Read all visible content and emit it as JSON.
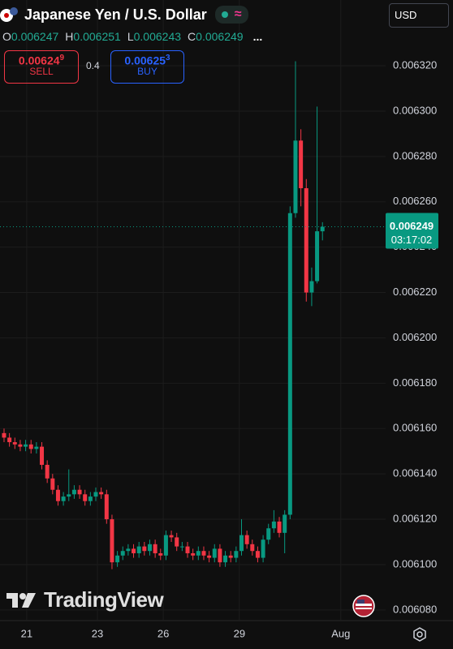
{
  "header": {
    "title": "Japanese Yen / U.S. Dollar",
    "currency": "USD",
    "ohlc": [
      {
        "key": "O",
        "value": "0.006247"
      },
      {
        "key": "H",
        "value": "0.006251"
      },
      {
        "key": "L",
        "value": "0.006243"
      },
      {
        "key": "C",
        "value": "0.006249"
      }
    ],
    "more": "...",
    "sell": {
      "price": "0.00624",
      "pip": "9",
      "label": "SELL"
    },
    "spread": "0.4",
    "buy": {
      "price": "0.00625",
      "pip": "3",
      "label": "BUY"
    }
  },
  "branding": "TradingView",
  "chart_data": {
    "type": "candlestick",
    "up_color": "#089981",
    "down_color": "#f23645",
    "grid": true,
    "x": [
      0,
      1,
      2,
      3,
      4,
      5,
      6,
      7,
      8,
      9,
      10,
      11,
      12,
      13,
      14,
      15,
      16,
      17,
      18,
      19,
      20,
      21,
      22,
      23,
      24,
      25,
      26,
      27,
      28,
      29,
      30,
      31,
      32,
      33,
      34,
      35,
      36,
      37,
      38,
      39,
      40,
      41,
      42,
      43,
      44,
      45,
      46,
      47,
      48,
      49,
      50,
      51,
      52,
      53,
      54,
      55,
      56,
      57,
      58,
      59
    ],
    "open": [
      0.006158,
      0.006156,
      0.006154,
      0.006153,
      0.006152,
      0.006153,
      0.006151,
      0.006152,
      0.006144,
      0.006138,
      0.006133,
      0.006128,
      0.00613,
      0.006131,
      0.006133,
      0.006131,
      0.006128,
      0.00613,
      0.006132,
      0.006131,
      0.00612,
      0.006101,
      0.006104,
      0.006106,
      0.006107,
      0.006105,
      0.006108,
      0.006106,
      0.006109,
      0.006105,
      0.006104,
      0.006113,
      0.006112,
      0.006108,
      0.006108,
      0.006105,
      0.006104,
      0.006106,
      0.006104,
      0.006103,
      0.006107,
      0.006101,
      0.006104,
      0.006103,
      0.006106,
      0.006113,
      0.006109,
      0.006106,
      0.006103,
      0.006111,
      0.006116,
      0.006119,
      0.006114,
      0.006122,
      0.006255,
      0.006287,
      0.006266,
      0.00622,
      0.006225,
      0.006247
    ],
    "high": [
      0.00616,
      0.006158,
      0.006156,
      0.006155,
      0.006155,
      0.006155,
      0.006154,
      0.006154,
      0.006146,
      0.00614,
      0.006135,
      0.006132,
      0.006142,
      0.006135,
      0.006135,
      0.006133,
      0.006132,
      0.006134,
      0.006134,
      0.006133,
      0.006122,
      0.006106,
      0.006108,
      0.006109,
      0.006109,
      0.00611,
      0.00611,
      0.006111,
      0.006111,
      0.006107,
      0.006115,
      0.006115,
      0.006114,
      0.00611,
      0.00611,
      0.006107,
      0.006108,
      0.006108,
      0.006106,
      0.006109,
      0.006109,
      0.006106,
      0.006106,
      0.006108,
      0.00612,
      0.006115,
      0.006111,
      0.006108,
      0.006113,
      0.006118,
      0.006124,
      0.006121,
      0.006124,
      0.006258,
      0.006322,
      0.006292,
      0.00627,
      0.006231,
      0.006302,
      0.006251
    ],
    "low": [
      0.006154,
      0.006152,
      0.006151,
      0.00615,
      0.00615,
      0.006149,
      0.006149,
      0.006142,
      0.006136,
      0.006131,
      0.006126,
      0.006126,
      0.006128,
      0.006129,
      0.006129,
      0.006126,
      0.006126,
      0.006128,
      0.006129,
      0.006118,
      0.006098,
      0.006099,
      0.006102,
      0.006104,
      0.006103,
      0.006103,
      0.006104,
      0.006104,
      0.006103,
      0.006102,
      0.006102,
      0.00611,
      0.006106,
      0.006106,
      0.006103,
      0.006102,
      0.006102,
      0.006102,
      0.006101,
      0.006101,
      0.006099,
      0.006099,
      0.006101,
      0.006101,
      0.006104,
      0.006107,
      0.006104,
      0.006101,
      0.006101,
      0.006109,
      0.006114,
      0.006112,
      0.006105,
      0.00612,
      0.006253,
      0.006258,
      0.006216,
      0.006214,
      0.006224,
      0.006243
    ],
    "close": [
      0.006156,
      0.006154,
      0.006153,
      0.006152,
      0.006153,
      0.006151,
      0.006152,
      0.006144,
      0.006138,
      0.006133,
      0.006128,
      0.00613,
      0.006131,
      0.006133,
      0.006131,
      0.006128,
      0.00613,
      0.006132,
      0.006131,
      0.00612,
      0.006101,
      0.006104,
      0.006106,
      0.006107,
      0.006105,
      0.006108,
      0.006106,
      0.006109,
      0.006105,
      0.006104,
      0.006113,
      0.006112,
      0.006108,
      0.006108,
      0.006105,
      0.006104,
      0.006106,
      0.006104,
      0.006103,
      0.006107,
      0.006101,
      0.006104,
      0.006103,
      0.006106,
      0.006113,
      0.006109,
      0.006106,
      0.006103,
      0.006111,
      0.006116,
      0.006119,
      0.006114,
      0.006122,
      0.006255,
      0.006287,
      0.006266,
      0.00622,
      0.006225,
      0.006247,
      0.006249
    ],
    "xlim": [
      -0.75,
      70.7
    ],
    "xticks": [
      {
        "value": 4.2,
        "label": "21"
      },
      {
        "value": 17.3,
        "label": "23"
      },
      {
        "value": 29.5,
        "label": "26"
      },
      {
        "value": 43.6,
        "label": "29"
      },
      {
        "value": 62.4,
        "label": "Aug"
      }
    ],
    "ylim": [
      0.0060753,
      0.006349
    ],
    "yticks": [
      {
        "value": 0.00608,
        "label": "0.006080"
      },
      {
        "value": 0.0061,
        "label": "0.006100"
      },
      {
        "value": 0.00612,
        "label": "0.006120"
      },
      {
        "value": 0.00614,
        "label": "0.006140"
      },
      {
        "value": 0.00616,
        "label": "0.006160"
      },
      {
        "value": 0.00618,
        "label": "0.006180"
      },
      {
        "value": 0.0062,
        "label": "0.006200"
      },
      {
        "value": 0.00622,
        "label": "0.006220"
      },
      {
        "value": 0.00624,
        "label": "0.006240"
      },
      {
        "value": 0.00626,
        "label": "0.006260"
      },
      {
        "value": 0.00628,
        "label": "0.006280"
      },
      {
        "value": 0.0063,
        "label": "0.006300"
      },
      {
        "value": 0.00632,
        "label": "0.006320"
      }
    ],
    "last_price": {
      "value": 0.006249,
      "label": "0.006249"
    },
    "countdown": "03:17:02"
  }
}
